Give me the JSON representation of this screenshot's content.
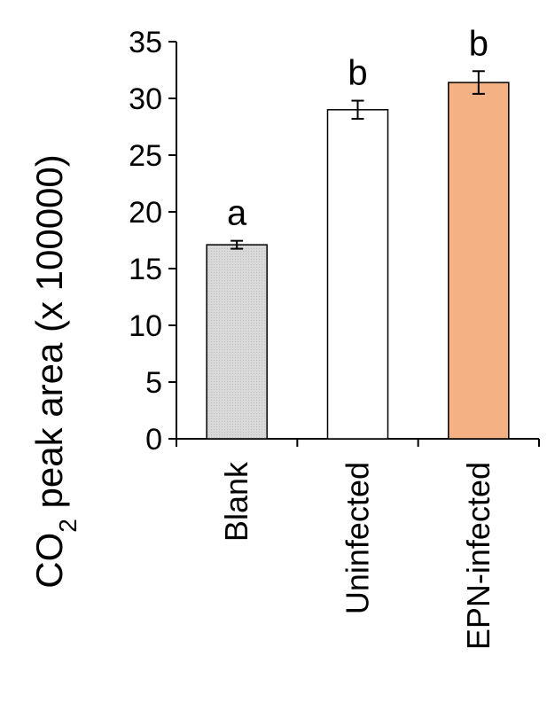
{
  "chart_data": {
    "type": "bar",
    "categories": [
      "Blank",
      "Uninfected",
      "EPN-infected"
    ],
    "values": [
      17.1,
      29.0,
      31.4
    ],
    "errors": [
      0.35,
      0.8,
      1.0
    ],
    "significance": [
      "a",
      "b",
      "b"
    ],
    "colors": [
      "#d9d9d9",
      "#ffffff",
      "#f4b183"
    ],
    "ylabel": {
      "main": "CO",
      "subscript": "2",
      "rest": " peak area (x 100000)"
    },
    "ylim": [
      0,
      35
    ],
    "yticks": [
      0,
      5,
      10,
      15,
      20,
      25,
      30,
      35
    ],
    "grid": false
  }
}
